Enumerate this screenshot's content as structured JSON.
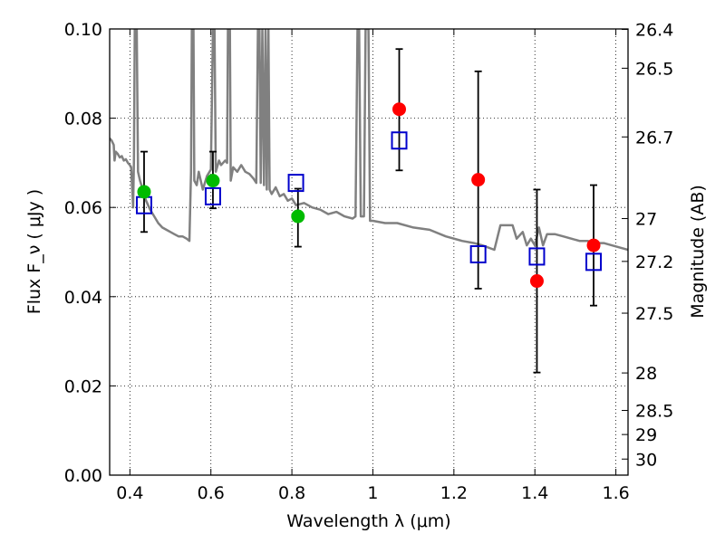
{
  "chart_data": {
    "type": "scatter",
    "xlabel": "Wavelength  λ (μm)",
    "ylabel": "Flux  F_ν  ( μJy )",
    "y2label": "Magnitude (AB)",
    "xlim": [
      0.35,
      1.63
    ],
    "ylim": [
      0.0,
      0.1
    ],
    "grid": true,
    "x_ticks": [
      0.4,
      0.6,
      0.8,
      1.0,
      1.2,
      1.4,
      1.6
    ],
    "x_tick_labels": [
      "0.4",
      "0.6",
      "0.8",
      "1",
      "1.2",
      "1.4",
      "1.6"
    ],
    "y_ticks": [
      0.0,
      0.02,
      0.04,
      0.06,
      0.08,
      0.1
    ],
    "y_tick_labels": [
      "0.00",
      "0.02",
      "0.04",
      "0.06",
      "0.08",
      "0.10"
    ],
    "y2_ticks": [
      {
        "label": "26.4",
        "flux": 0.0999
      },
      {
        "label": "26.5",
        "flux": 0.0912
      },
      {
        "label": "26.7",
        "flux": 0.0758
      },
      {
        "label": "27",
        "flux": 0.0575
      },
      {
        "label": "27.2",
        "flux": 0.0479
      },
      {
        "label": "27.5",
        "flux": 0.0363
      },
      {
        "label": "28",
        "flux": 0.0229
      },
      {
        "label": "28.5",
        "flux": 0.0145
      },
      {
        "label": "29",
        "flux": 0.0091
      },
      {
        "label": "30",
        "flux": 0.0036
      }
    ],
    "series": [
      {
        "type": "line",
        "color": "#808080",
        "points": [
          [
            0.35,
            0.0755
          ],
          [
            0.355,
            0.075
          ],
          [
            0.36,
            0.074
          ],
          [
            0.362,
            0.0705
          ],
          [
            0.365,
            0.0725
          ],
          [
            0.37,
            0.072
          ],
          [
            0.375,
            0.0712
          ],
          [
            0.38,
            0.0715
          ],
          [
            0.385,
            0.0705
          ],
          [
            0.39,
            0.0708
          ],
          [
            0.395,
            0.07
          ],
          [
            0.4,
            0.0695
          ],
          [
            0.403,
            0.069
          ],
          [
            0.408,
            0.06
          ],
          [
            0.41,
            0.0705
          ],
          [
            0.412,
            0.1
          ],
          [
            0.417,
            0.1
          ],
          [
            0.42,
            0.068
          ],
          [
            0.425,
            0.066
          ],
          [
            0.43,
            0.0645
          ],
          [
            0.44,
            0.0615
          ],
          [
            0.45,
            0.0595
          ],
          [
            0.46,
            0.058
          ],
          [
            0.47,
            0.0565
          ],
          [
            0.48,
            0.0555
          ],
          [
            0.49,
            0.055
          ],
          [
            0.5,
            0.0545
          ],
          [
            0.51,
            0.054
          ],
          [
            0.52,
            0.0535
          ],
          [
            0.53,
            0.0535
          ],
          [
            0.54,
            0.053
          ],
          [
            0.547,
            0.0525
          ],
          [
            0.551,
            0.068
          ],
          [
            0.553,
            0.1
          ],
          [
            0.557,
            0.1
          ],
          [
            0.559,
            0.066
          ],
          [
            0.565,
            0.065
          ],
          [
            0.57,
            0.068
          ],
          [
            0.58,
            0.064
          ],
          [
            0.59,
            0.067
          ],
          [
            0.6,
            0.0685
          ],
          [
            0.605,
            0.1
          ],
          [
            0.609,
            0.1
          ],
          [
            0.612,
            0.068
          ],
          [
            0.62,
            0.0705
          ],
          [
            0.625,
            0.0695
          ],
          [
            0.635,
            0.0705
          ],
          [
            0.64,
            0.07
          ],
          [
            0.642,
            0.1
          ],
          [
            0.647,
            0.1
          ],
          [
            0.649,
            0.066
          ],
          [
            0.655,
            0.069
          ],
          [
            0.665,
            0.068
          ],
          [
            0.675,
            0.0695
          ],
          [
            0.685,
            0.068
          ],
          [
            0.695,
            0.0675
          ],
          [
            0.705,
            0.0665
          ],
          [
            0.712,
            0.0655
          ],
          [
            0.716,
            0.1
          ],
          [
            0.72,
            0.1
          ],
          [
            0.723,
            0.0655
          ],
          [
            0.727,
            0.1
          ],
          [
            0.731,
            0.065
          ],
          [
            0.735,
            0.1
          ],
          [
            0.738,
            0.064
          ],
          [
            0.742,
            0.1
          ],
          [
            0.745,
            0.064
          ],
          [
            0.75,
            0.063
          ],
          [
            0.76,
            0.0645
          ],
          [
            0.77,
            0.0625
          ],
          [
            0.78,
            0.063
          ],
          [
            0.79,
            0.0615
          ],
          [
            0.8,
            0.062
          ],
          [
            0.81,
            0.0605
          ],
          [
            0.83,
            0.061
          ],
          [
            0.85,
            0.06
          ],
          [
            0.87,
            0.0595
          ],
          [
            0.89,
            0.0585
          ],
          [
            0.91,
            0.059
          ],
          [
            0.93,
            0.058
          ],
          [
            0.95,
            0.0575
          ],
          [
            0.957,
            0.058
          ],
          [
            0.962,
            0.1
          ],
          [
            0.966,
            0.1
          ],
          [
            0.97,
            0.058
          ],
          [
            0.978,
            0.058
          ],
          [
            0.982,
            0.1
          ],
          [
            0.989,
            0.1
          ],
          [
            0.993,
            0.057
          ],
          [
            1.0,
            0.057
          ],
          [
            1.03,
            0.0565
          ],
          [
            1.06,
            0.0565
          ],
          [
            1.1,
            0.0555
          ],
          [
            1.14,
            0.055
          ],
          [
            1.18,
            0.0535
          ],
          [
            1.22,
            0.0525
          ],
          [
            1.25,
            0.052
          ],
          [
            1.27,
            0.0515
          ],
          [
            1.3,
            0.0505
          ],
          [
            1.315,
            0.056
          ],
          [
            1.345,
            0.056
          ],
          [
            1.355,
            0.053
          ],
          [
            1.37,
            0.0545
          ],
          [
            1.38,
            0.0515
          ],
          [
            1.39,
            0.053
          ],
          [
            1.4,
            0.0515
          ],
          [
            1.41,
            0.0555
          ],
          [
            1.42,
            0.0515
          ],
          [
            1.43,
            0.054
          ],
          [
            1.44,
            0.054
          ],
          [
            1.45,
            0.054
          ],
          [
            1.47,
            0.0535
          ],
          [
            1.49,
            0.053
          ],
          [
            1.51,
            0.0525
          ],
          [
            1.53,
            0.0525
          ],
          [
            1.55,
            0.052
          ],
          [
            1.57,
            0.052
          ],
          [
            1.59,
            0.0515
          ],
          [
            1.61,
            0.051
          ],
          [
            1.63,
            0.0505
          ]
        ]
      },
      {
        "type": "scatter",
        "marker": "square",
        "color": "#0000cc",
        "x": [
          0.435,
          0.605,
          0.81,
          1.065,
          1.26,
          1.405,
          1.545
        ],
        "y": [
          0.0605,
          0.0625,
          0.0655,
          0.075,
          0.0495,
          0.049,
          0.0478
        ]
      },
      {
        "type": "scatter",
        "marker": "circle",
        "color": "#00bb00",
        "x": [
          0.435,
          0.605,
          0.815
        ],
        "y": [
          0.0635,
          0.066,
          0.058
        ]
      },
      {
        "type": "scatter",
        "marker": "circle",
        "color": "#ff0000",
        "x": [
          1.065,
          1.26,
          1.405,
          1.545
        ],
        "y": [
          0.082,
          0.0662,
          0.0435,
          0.0515
        ]
      }
    ],
    "errorbars": [
      {
        "x": 0.435,
        "ylo": 0.0545,
        "yhi": 0.0725
      },
      {
        "x": 0.605,
        "ylo": 0.0598,
        "yhi": 0.0725
      },
      {
        "x": 0.815,
        "ylo": 0.0512,
        "yhi": 0.0642
      },
      {
        "x": 1.065,
        "ylo": 0.0683,
        "yhi": 0.0955
      },
      {
        "x": 1.26,
        "ylo": 0.0418,
        "yhi": 0.0905
      },
      {
        "x": 1.405,
        "ylo": 0.023,
        "yhi": 0.064
      },
      {
        "x": 1.545,
        "ylo": 0.038,
        "yhi": 0.065
      }
    ]
  }
}
